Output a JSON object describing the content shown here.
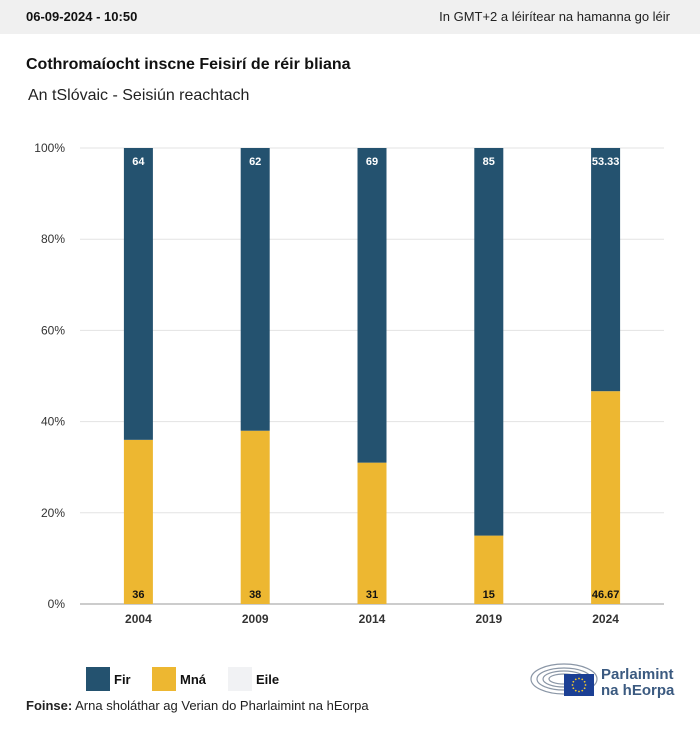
{
  "header": {
    "date": "06-09-2024 - 10:50",
    "timezone_note": "In GMT+2 a léirítear na hamanna go léir"
  },
  "title": "Cothromaíocht inscne Feisirí de réir bliana",
  "subtitle": "An tSlóvaic - Seisiún reachtach",
  "chart_data": {
    "type": "bar",
    "stacked": true,
    "categories": [
      "2004",
      "2009",
      "2014",
      "2019",
      "2024"
    ],
    "series": [
      {
        "name": "Mná",
        "values": [
          36,
          38,
          31,
          15,
          46.67
        ],
        "color": "#edb731"
      },
      {
        "name": "Fir",
        "values": [
          64,
          62,
          69,
          85,
          53.33
        ],
        "color": "#24526f"
      },
      {
        "name": "Eile",
        "values": [
          0,
          0,
          0,
          0,
          0
        ],
        "color": "#f1f2f4"
      }
    ],
    "y_ticks": [
      "0%",
      "20%",
      "40%",
      "60%",
      "80%",
      "100%"
    ],
    "ylim": [
      0,
      100
    ],
    "grid": true,
    "legend_position": "bottom-left"
  },
  "legend": [
    {
      "label": "Fir",
      "color": "#24526f"
    },
    {
      "label": "Mná",
      "color": "#edb731"
    },
    {
      "label": "Eile",
      "color": "#f1f2f4"
    }
  ],
  "source": {
    "label": "Foinse:",
    "text": "Arna sholáthar ag Verian do Pharlaimint na hEorpa"
  },
  "logo": {
    "line1": "Parlaimint",
    "line2": "na hEorpa",
    "colors": {
      "blue": "#3b5a80",
      "flag": "#1b3f94",
      "stars": "#f5cb2b"
    }
  }
}
